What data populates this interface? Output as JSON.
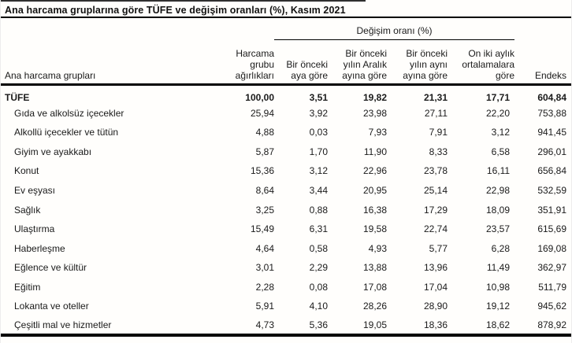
{
  "title": "Ana harcama gruplarına göre TÜFE ve değişim oranları (%), Kasım 2021",
  "table": {
    "group_header": "Değişim oranı (%)",
    "columns": {
      "label": "Ana harcama grupları",
      "weight": "Harcama\ngrubu\nağırlıkları",
      "monthly": "Bir önceki\naya göre",
      "since_december": "Bir önceki\nyılın Aralık\nayına göre",
      "yoy": "Bir önceki\nyılın aynı\nayına göre",
      "twelve_month_avg": "On iki aylık\nortalamalara\ngöre",
      "index": "Endeks"
    },
    "rows": [
      {
        "label": "TÜFE",
        "bold": true,
        "indent": false,
        "values": [
          "100,00",
          "3,51",
          "19,82",
          "21,31",
          "17,71",
          "604,84"
        ]
      },
      {
        "label": "Gıda ve alkolsüz içecekler",
        "bold": false,
        "indent": true,
        "values": [
          "25,94",
          "3,92",
          "23,98",
          "27,11",
          "22,20",
          "753,88"
        ]
      },
      {
        "label": "Alkollü içecekler ve tütün",
        "bold": false,
        "indent": true,
        "values": [
          "4,88",
          "0,03",
          "7,93",
          "7,91",
          "3,12",
          "941,45"
        ]
      },
      {
        "label": "Giyim ve ayakkabı",
        "bold": false,
        "indent": true,
        "values": [
          "5,87",
          "1,70",
          "11,90",
          "8,33",
          "6,58",
          "296,01"
        ]
      },
      {
        "label": "Konut",
        "bold": false,
        "indent": true,
        "values": [
          "15,36",
          "3,12",
          "22,96",
          "23,78",
          "16,11",
          "656,84"
        ]
      },
      {
        "label": "Ev eşyası",
        "bold": false,
        "indent": true,
        "values": [
          "8,64",
          "3,44",
          "20,95",
          "25,14",
          "22,98",
          "532,59"
        ]
      },
      {
        "label": "Sağlık",
        "bold": false,
        "indent": true,
        "values": [
          "3,25",
          "0,88",
          "16,38",
          "17,29",
          "18,09",
          "351,91"
        ]
      },
      {
        "label": "Ulaştırma",
        "bold": false,
        "indent": true,
        "values": [
          "15,49",
          "6,31",
          "19,58",
          "22,74",
          "23,57",
          "615,69"
        ]
      },
      {
        "label": "Haberleşme",
        "bold": false,
        "indent": true,
        "values": [
          "4,64",
          "0,58",
          "4,93",
          "5,77",
          "6,28",
          "169,08"
        ]
      },
      {
        "label": "Eğlence ve kültür",
        "bold": false,
        "indent": true,
        "values": [
          "3,01",
          "2,29",
          "13,88",
          "13,96",
          "11,49",
          "362,97"
        ]
      },
      {
        "label": "Eğitim",
        "bold": false,
        "indent": true,
        "values": [
          "2,28",
          "0,08",
          "17,08",
          "17,04",
          "10,98",
          "511,79"
        ]
      },
      {
        "label": "Lokanta ve oteller",
        "bold": false,
        "indent": true,
        "values": [
          "5,91",
          "4,10",
          "28,26",
          "28,90",
          "19,12",
          "945,62"
        ]
      },
      {
        "label": "Çeşitli mal ve hizmetler",
        "bold": false,
        "indent": true,
        "values": [
          "4,73",
          "5,36",
          "19,05",
          "18,36",
          "18,62",
          "878,92"
        ]
      }
    ]
  }
}
